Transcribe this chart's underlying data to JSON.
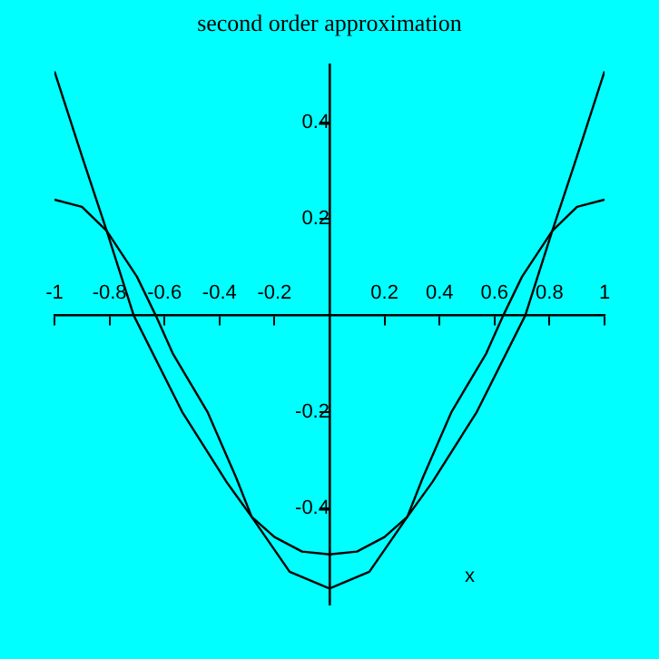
{
  "chart_data": {
    "type": "line",
    "title": "second order approximation",
    "xlabel": "x",
    "xlim": [
      -1,
      1
    ],
    "ylim": [
      -0.6,
      0.52
    ],
    "xticks": [
      -1,
      -0.8,
      -0.6,
      -0.4,
      -0.2,
      0.2,
      0.4,
      0.6,
      0.8,
      1
    ],
    "yticks": [
      -0.4,
      -0.2,
      0.2,
      0.4
    ],
    "grid": false,
    "legend": false,
    "marker": "none",
    "line_style": "solid",
    "series": [
      {
        "color": "#000000",
        "x": [
          -1,
          -0.9,
          -0.81,
          -0.712,
          -0.536,
          -0.374,
          -0.283,
          -0.2,
          -0.1,
          0,
          0.1,
          0.2,
          0.283,
          0.374,
          0.536,
          0.712,
          0.81,
          0.9,
          1
        ],
        "values": [
          0.506,
          0.33,
          0.175,
          0,
          -0.2,
          -0.346,
          -0.418,
          -0.46,
          -0.49,
          -0.496,
          -0.49,
          -0.46,
          -0.418,
          -0.346,
          -0.2,
          0,
          0.175,
          0.33,
          0.506
        ]
      },
      {
        "color": "#000000",
        "x": [
          -1,
          -0.9,
          -0.81,
          -0.7,
          -0.632,
          -0.57,
          -0.444,
          -0.34,
          -0.283,
          -0.145,
          0,
          0.145,
          0.283,
          0.34,
          0.444,
          0.57,
          0.632,
          0.7,
          0.81,
          0.9,
          1
        ],
        "values": [
          0.24,
          0.225,
          0.175,
          0.08,
          0,
          -0.079,
          -0.2,
          -0.336,
          -0.418,
          -0.532,
          -0.567,
          -0.532,
          -0.418,
          -0.336,
          -0.2,
          -0.079,
          0,
          0.08,
          0.175,
          0.225,
          0.24
        ]
      }
    ]
  }
}
